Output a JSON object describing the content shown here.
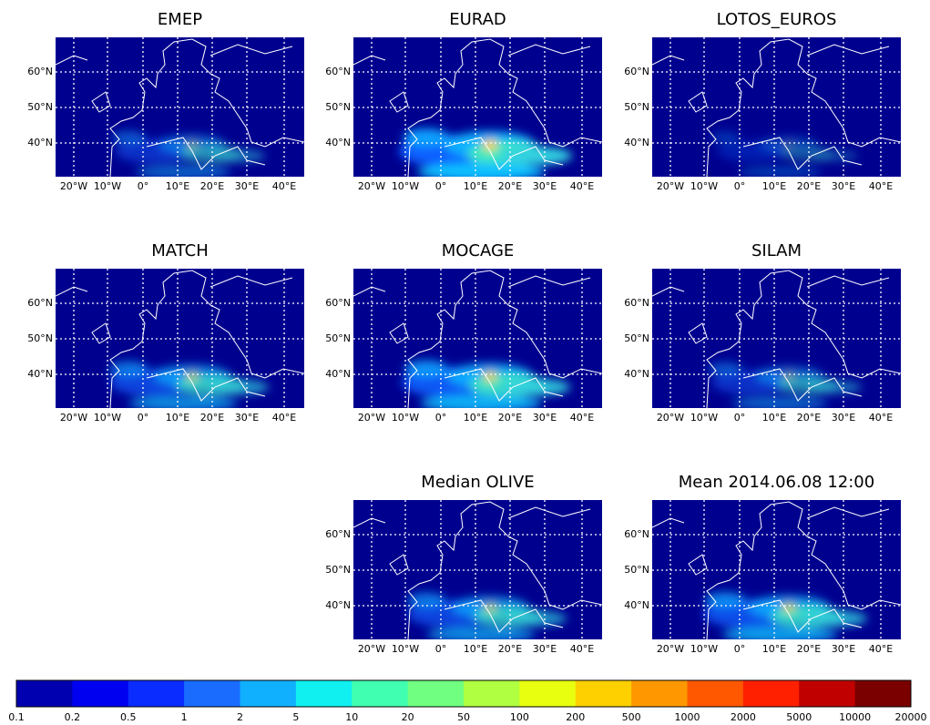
{
  "panels": [
    {
      "title": "EMEP"
    },
    {
      "title": "EURAD"
    },
    {
      "title": "LOTOS_EUROS"
    },
    {
      "title": "MATCH"
    },
    {
      "title": "MOCAGE"
    },
    {
      "title": "SILAM"
    },
    {
      "title": "Median OLIVE"
    },
    {
      "title": "Mean 2014.06.08 12:00"
    }
  ],
  "map_axes": {
    "lat_labels": [
      "60°N",
      "50°N",
      "40°N"
    ],
    "lon_labels": [
      "20°W",
      "10°W",
      "0°",
      "10°E",
      "20°E",
      "30°E",
      "40°E"
    ]
  },
  "colorbar": {
    "labels": [
      "0.1",
      "0.2",
      "0.5",
      "1",
      "2",
      "5",
      "10",
      "20",
      "50",
      "100",
      "200",
      "500",
      "1000",
      "2000",
      "5000",
      "10000",
      "20000"
    ],
    "colors": [
      "#0000b0",
      "#0000f0",
      "#0a2cff",
      "#1a6cff",
      "#10b0ff",
      "#10f0f0",
      "#40ffb0",
      "#70ff80",
      "#b0ff40",
      "#e8ff10",
      "#ffd000",
      "#ff9800",
      "#ff5800",
      "#ff2000",
      "#c00000",
      "#7a0000"
    ]
  }
}
